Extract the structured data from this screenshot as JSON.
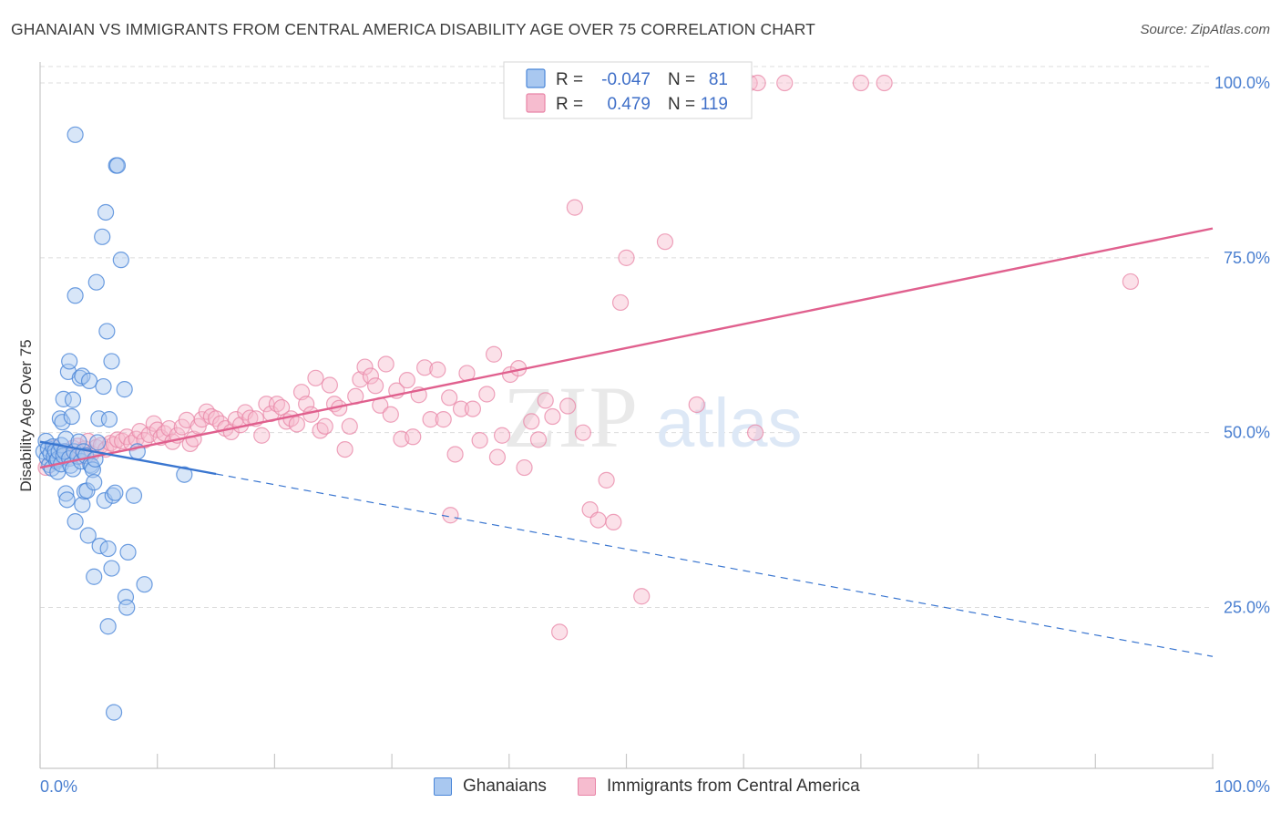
{
  "header": {
    "title": "GHANAIAN VS IMMIGRANTS FROM CENTRAL AMERICA DISABILITY AGE OVER 75 CORRELATION CHART",
    "source": "Source: ZipAtlas.com"
  },
  "watermark": {
    "zip": "ZIP",
    "atlas": "atlas"
  },
  "legend": {
    "rows": [
      {
        "r_label": "R =",
        "r_value": "-0.047",
        "n_label": "N =",
        "n_value": "81"
      },
      {
        "r_label": "R =",
        "r_value": "0.479",
        "n_label": "N =",
        "n_value": "119"
      }
    ]
  },
  "bottom_legend": {
    "items": [
      {
        "label": "Ghanaians"
      },
      {
        "label": "Immigrants from Central America"
      }
    ]
  },
  "chart_data": {
    "type": "scatter",
    "title": "GHANAIAN VS IMMIGRANTS FROM CENTRAL AMERICA DISABILITY AGE OVER 75 CORRELATION CHART",
    "xlabel": "",
    "ylabel": "Disability Age Over 75",
    "xlim": [
      0,
      100
    ],
    "ylim": [
      2,
      103
    ],
    "x_tick_labels": [
      "0.0%",
      "100.0%"
    ],
    "y_ticks": [
      25,
      50,
      75,
      100
    ],
    "y_tick_labels": [
      "25.0%",
      "50.0%",
      "75.0%",
      "100.0%"
    ],
    "grid": true,
    "colors": {
      "ghanaians_fill": "#a9c8f0",
      "ghanaians_stroke": "#4a86d8",
      "ghanaians_line": "#3a76d0",
      "central_fill": "#f6bccf",
      "central_stroke": "#e884a6",
      "central_line": "#e0608e",
      "tick_label": "#4a7fd0"
    },
    "series": [
      {
        "name": "Ghanaians",
        "r": -0.047,
        "n": 81,
        "trend": {
          "x0": 0,
          "y0": 48.7,
          "x1": 100,
          "y1": 18.0,
          "solid_until_x": 15
        },
        "points": [
          [
            0.3,
            47.3
          ],
          [
            0.5,
            48.8
          ],
          [
            0.6,
            46.4
          ],
          [
            0.7,
            47.7
          ],
          [
            0.8,
            45.4
          ],
          [
            0.9,
            47.0
          ],
          [
            1.0,
            44.9
          ],
          [
            1.1,
            48.0
          ],
          [
            1.2,
            46.6
          ],
          [
            1.3,
            47.4
          ],
          [
            1.4,
            45.9
          ],
          [
            1.5,
            46.2
          ],
          [
            1.5,
            44.4
          ],
          [
            1.6,
            47.3
          ],
          [
            1.7,
            52.0
          ],
          [
            1.8,
            48.2
          ],
          [
            1.8,
            45.5
          ],
          [
            1.9,
            51.5
          ],
          [
            2.0,
            54.8
          ],
          [
            2.0,
            46.7
          ],
          [
            2.1,
            47.3
          ],
          [
            2.2,
            49.1
          ],
          [
            2.2,
            41.3
          ],
          [
            2.3,
            40.4
          ],
          [
            2.4,
            58.7
          ],
          [
            2.5,
            60.2
          ],
          [
            2.5,
            46.3
          ],
          [
            2.6,
            45.3
          ],
          [
            2.7,
            52.3
          ],
          [
            2.8,
            54.7
          ],
          [
            2.8,
            44.8
          ],
          [
            2.9,
            47.3
          ],
          [
            3.0,
            92.6
          ],
          [
            3.0,
            69.6
          ],
          [
            3.0,
            37.3
          ],
          [
            3.2,
            46.6
          ],
          [
            3.3,
            48.7
          ],
          [
            3.4,
            57.8
          ],
          [
            3.5,
            45.9
          ],
          [
            3.6,
            58.1
          ],
          [
            3.6,
            39.7
          ],
          [
            3.7,
            47.3
          ],
          [
            3.8,
            41.6
          ],
          [
            3.9,
            46.7
          ],
          [
            4.0,
            41.7
          ],
          [
            4.1,
            35.3
          ],
          [
            4.2,
            57.4
          ],
          [
            4.3,
            45.4
          ],
          [
            4.4,
            45.2
          ],
          [
            4.5,
            44.7
          ],
          [
            4.6,
            42.9
          ],
          [
            4.6,
            29.4
          ],
          [
            4.7,
            46.2
          ],
          [
            4.8,
            71.5
          ],
          [
            4.9,
            48.6
          ],
          [
            5.0,
            52.0
          ],
          [
            5.1,
            33.8
          ],
          [
            5.3,
            78.0
          ],
          [
            5.4,
            56.6
          ],
          [
            5.5,
            40.3
          ],
          [
            5.6,
            81.5
          ],
          [
            5.7,
            64.5
          ],
          [
            5.8,
            33.4
          ],
          [
            5.8,
            22.3
          ],
          [
            5.9,
            51.9
          ],
          [
            6.1,
            60.2
          ],
          [
            6.1,
            30.6
          ],
          [
            6.2,
            41.0
          ],
          [
            6.3,
            10.0
          ],
          [
            6.4,
            41.4
          ],
          [
            6.5,
            88.2
          ],
          [
            6.6,
            88.2
          ],
          [
            6.9,
            74.7
          ],
          [
            7.2,
            56.2
          ],
          [
            7.3,
            26.5
          ],
          [
            7.4,
            25.0
          ],
          [
            7.5,
            32.9
          ],
          [
            8.0,
            41.0
          ],
          [
            8.3,
            47.3
          ],
          [
            8.9,
            28.3
          ],
          [
            12.3,
            44.0
          ]
        ]
      },
      {
        "name": "Immigrants from Central America",
        "r": 0.479,
        "n": 119,
        "trend": {
          "x0": 0,
          "y0": 45.0,
          "x1": 100,
          "y1": 79.2
        },
        "points": [
          [
            0.5,
            45.0
          ],
          [
            1.2,
            47.8
          ],
          [
            1.5,
            46.2
          ],
          [
            2.0,
            47.3
          ],
          [
            2.4,
            46.5
          ],
          [
            2.8,
            47.8
          ],
          [
            3.2,
            48.1
          ],
          [
            3.5,
            46.6
          ],
          [
            3.8,
            47.7
          ],
          [
            4.1,
            48.8
          ],
          [
            4.4,
            47.0
          ],
          [
            4.8,
            47.9
          ],
          [
            5.2,
            48.2
          ],
          [
            5.6,
            47.6
          ],
          [
            6.0,
            48.5
          ],
          [
            6.3,
            48.3
          ],
          [
            6.6,
            49.0
          ],
          [
            7.0,
            48.8
          ],
          [
            7.4,
            49.4
          ],
          [
            7.8,
            48.5
          ],
          [
            8.2,
            49.1
          ],
          [
            8.5,
            50.2
          ],
          [
            8.9,
            48.9
          ],
          [
            9.3,
            49.7
          ],
          [
            9.7,
            51.3
          ],
          [
            10.0,
            50.4
          ],
          [
            10.3,
            49.3
          ],
          [
            10.6,
            49.9
          ],
          [
            11.0,
            50.6
          ],
          [
            11.3,
            48.7
          ],
          [
            11.7,
            49.6
          ],
          [
            12.1,
            50.8
          ],
          [
            12.5,
            51.8
          ],
          [
            12.8,
            48.4
          ],
          [
            13.1,
            49.1
          ],
          [
            13.5,
            50.9
          ],
          [
            13.8,
            51.9
          ],
          [
            14.2,
            53.0
          ],
          [
            14.6,
            52.3
          ],
          [
            15.0,
            52.0
          ],
          [
            15.4,
            51.3
          ],
          [
            15.8,
            50.6
          ],
          [
            16.3,
            50.1
          ],
          [
            16.7,
            51.9
          ],
          [
            17.1,
            51.1
          ],
          [
            17.5,
            52.9
          ],
          [
            17.9,
            52.1
          ],
          [
            18.4,
            52.0
          ],
          [
            18.9,
            49.6
          ],
          [
            19.3,
            54.1
          ],
          [
            19.7,
            52.7
          ],
          [
            20.2,
            54.1
          ],
          [
            20.6,
            53.6
          ],
          [
            21.0,
            51.6
          ],
          [
            21.4,
            52.0
          ],
          [
            21.9,
            51.2
          ],
          [
            22.3,
            55.8
          ],
          [
            22.7,
            54.1
          ],
          [
            23.1,
            52.6
          ],
          [
            23.5,
            57.8
          ],
          [
            23.9,
            50.3
          ],
          [
            24.3,
            50.9
          ],
          [
            24.7,
            56.8
          ],
          [
            25.1,
            54.1
          ],
          [
            25.5,
            53.5
          ],
          [
            26.0,
            47.6
          ],
          [
            26.4,
            50.9
          ],
          [
            26.9,
            55.2
          ],
          [
            27.3,
            57.6
          ],
          [
            27.7,
            59.4
          ],
          [
            28.2,
            58.1
          ],
          [
            28.6,
            56.7
          ],
          [
            29.0,
            53.9
          ],
          [
            29.5,
            59.8
          ],
          [
            29.9,
            52.6
          ],
          [
            30.4,
            56.0
          ],
          [
            30.8,
            49.1
          ],
          [
            31.3,
            57.5
          ],
          [
            31.8,
            49.4
          ],
          [
            32.3,
            55.4
          ],
          [
            32.8,
            59.3
          ],
          [
            33.3,
            51.9
          ],
          [
            33.9,
            59.0
          ],
          [
            34.4,
            51.9
          ],
          [
            34.9,
            55.0
          ],
          [
            35.4,
            46.9
          ],
          [
            35.9,
            53.4
          ],
          [
            36.4,
            58.5
          ],
          [
            36.9,
            53.4
          ],
          [
            37.5,
            48.9
          ],
          [
            38.1,
            55.5
          ],
          [
            38.7,
            61.2
          ],
          [
            39.4,
            49.6
          ],
          [
            40.1,
            58.3
          ],
          [
            40.8,
            59.2
          ],
          [
            41.3,
            45.0
          ],
          [
            41.9,
            51.6
          ],
          [
            42.5,
            49.0
          ],
          [
            43.1,
            54.6
          ],
          [
            43.7,
            52.3
          ],
          [
            44.3,
            21.5
          ],
          [
            45.0,
            53.8
          ],
          [
            45.6,
            82.2
          ],
          [
            46.3,
            50.0
          ],
          [
            46.9,
            39.0
          ],
          [
            47.6,
            37.5
          ],
          [
            48.3,
            43.2
          ],
          [
            48.9,
            37.2
          ],
          [
            49.5,
            68.6
          ],
          [
            50.0,
            75.0
          ],
          [
            51.3,
            26.6
          ],
          [
            53.3,
            77.3
          ],
          [
            56.0,
            54.0
          ],
          [
            60.0,
            100.0
          ],
          [
            60.5,
            100.0
          ],
          [
            61.2,
            100.0
          ],
          [
            63.5,
            100.0
          ],
          [
            70.0,
            100.0
          ],
          [
            72.0,
            100.0
          ],
          [
            93.0,
            71.6
          ],
          [
            35.0,
            38.2
          ],
          [
            39.0,
            46.5
          ],
          [
            61.0,
            50.0
          ]
        ]
      }
    ]
  }
}
